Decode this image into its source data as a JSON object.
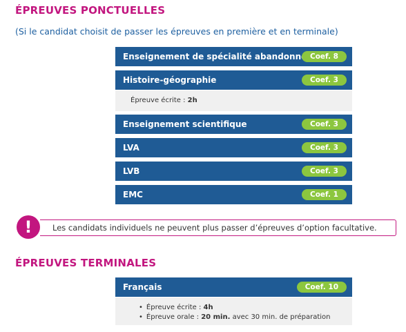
{
  "sections": [
    {
      "title": "ÉPREUVES PONCTUELLES",
      "subtitle": "(Si le candidat choisit de passer les épreuves en première et en terminale)",
      "rows": [
        {
          "name": "Enseignement de spécialité abandonnée",
          "coef": "Coef. 8"
        },
        {
          "name": "Histoire-géographie",
          "coef": "Coef. 3",
          "details": [
            {
              "label": "Épreuve écrite : ",
              "value": "2h"
            }
          ]
        },
        {
          "name": "Enseignement scientifique",
          "coef": "Coef. 3"
        },
        {
          "name": "LVA",
          "coef": "Coef. 3"
        },
        {
          "name": "LVB",
          "coef": "Coef. 3"
        },
        {
          "name": "EMC",
          "coef": "Coef. 1"
        }
      ]
    },
    {
      "title": "ÉPREUVES TERMINALES",
      "rows": [
        {
          "name": "Français",
          "coef": "Coef. 10",
          "details": [
            {
              "label": "Épreuve écrite : ",
              "value": "4h"
            },
            {
              "label": "Épreuve orale : ",
              "value": "20 min.",
              "suffix": " avec 30 min. de préparation"
            }
          ]
        }
      ]
    }
  ],
  "warning": {
    "icon": "!",
    "text": "Les candidats individuels ne peuvent plus passer d’épreuves d’option facultative."
  }
}
